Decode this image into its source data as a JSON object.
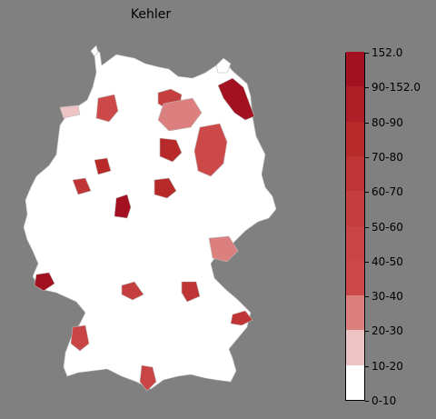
{
  "title": "Kehler",
  "colors": {
    "background": "#808080",
    "base_region": "#ffffff",
    "border": "#cccccc"
  },
  "legend": {
    "labels": [
      "0-10",
      "10-20",
      "20-30",
      "30-40",
      "40-50",
      "50-60",
      "60-70",
      "70-80",
      "80-90",
      "90-152.0",
      "152.0"
    ],
    "bins": [
      {
        "label": "0-10",
        "color": "#ffffff"
      },
      {
        "label": "10-20",
        "color": "#eec3c3"
      },
      {
        "label": "20-30",
        "color": "#dc7f7f"
      },
      {
        "label": "30-40",
        "color": "#cd4848"
      },
      {
        "label": "40-50",
        "color": "#c94444"
      },
      {
        "label": "50-60",
        "color": "#c43e3e"
      },
      {
        "label": "60-70",
        "color": "#bf3535"
      },
      {
        "label": "70-80",
        "color": "#b82a2a"
      },
      {
        "label": "80-90",
        "color": "#ae1e26"
      },
      {
        "label": "90-152.0",
        "color": "#a3101f"
      }
    ]
  },
  "regions": [
    {
      "level": 9,
      "shape": "northeast"
    },
    {
      "level": 9,
      "shape": "hesse"
    },
    {
      "level": 9,
      "shape": "saarland"
    },
    {
      "level": 7,
      "shape": "sachsen-anhalt"
    },
    {
      "level": 7,
      "shape": "thuringia"
    },
    {
      "level": 7,
      "shape": "frankfurt"
    },
    {
      "level": 6,
      "shape": "nrw"
    },
    {
      "level": 6,
      "shape": "bavaria-east"
    },
    {
      "level": 6,
      "shape": "erzgebirge"
    },
    {
      "level": 5,
      "shape": "hamburg"
    },
    {
      "level": 5,
      "shape": "nuremberg"
    },
    {
      "level": 4,
      "shape": "bw-west"
    },
    {
      "level": 4,
      "shape": "allgau"
    },
    {
      "level": 3,
      "shape": "brandenburg-south"
    },
    {
      "level": 3,
      "shape": "lower-saxony"
    },
    {
      "level": 2,
      "shape": "mecklenburg"
    },
    {
      "level": 2,
      "shape": "bavaria-south"
    }
  ]
}
